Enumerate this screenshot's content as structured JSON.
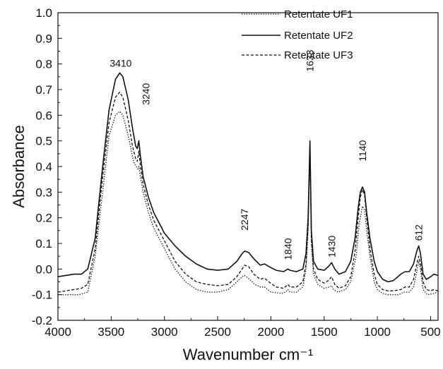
{
  "chart_data": {
    "type": "line",
    "title": "",
    "xlabel": "Wavenumber cm⁻¹",
    "ylabel": "Absorbance",
    "xlim": [
      4000,
      430
    ],
    "ylim": [
      -0.2,
      1.0
    ],
    "x_reversed": true,
    "grid": false,
    "legend_position": "top-right",
    "x_ticks": [
      4000,
      3500,
      3000,
      2500,
      2000,
      1500,
      1000,
      500
    ],
    "x_tick_labels": [
      "4000",
      "3500",
      "3000",
      "2500",
      "2000",
      "1500",
      "1000",
      "500"
    ],
    "y_ticks": [
      -0.2,
      -0.1,
      0.0,
      0.1,
      0.2,
      0.3,
      0.4,
      0.5,
      0.6,
      0.7,
      0.8,
      0.9,
      1.0
    ],
    "y_tick_labels": [
      "-0.2",
      "-0.1",
      "0.0",
      "0.1",
      "0.2",
      "0.3",
      "0.4",
      "0.5",
      "0.6",
      "0.7",
      "0.8",
      "0.9",
      "1.0"
    ],
    "series": [
      {
        "name": "Retentate UF1",
        "style": "dotted",
        "color": "#111111",
        "points": [
          [
            4000,
            -0.1
          ],
          [
            3800,
            -0.1
          ],
          [
            3720,
            -0.09
          ],
          [
            3650,
            0.05
          ],
          [
            3580,
            0.3
          ],
          [
            3520,
            0.52
          ],
          [
            3460,
            0.6
          ],
          [
            3420,
            0.615
          ],
          [
            3390,
            0.6
          ],
          [
            3340,
            0.52
          ],
          [
            3290,
            0.42
          ],
          [
            3250,
            0.39
          ],
          [
            3240,
            0.4
          ],
          [
            3225,
            0.36
          ],
          [
            3200,
            0.3
          ],
          [
            3150,
            0.22
          ],
          [
            3100,
            0.16
          ],
          [
            3000,
            0.08
          ],
          [
            2900,
            0.0
          ],
          [
            2800,
            -0.05
          ],
          [
            2700,
            -0.08
          ],
          [
            2600,
            -0.09
          ],
          [
            2500,
            -0.09
          ],
          [
            2400,
            -0.08
          ],
          [
            2320,
            -0.05
          ],
          [
            2270,
            -0.03
          ],
          [
            2247,
            -0.025
          ],
          [
            2200,
            -0.04
          ],
          [
            2150,
            -0.06
          ],
          [
            2100,
            -0.07
          ],
          [
            2060,
            -0.07
          ],
          [
            2000,
            -0.09
          ],
          [
            1900,
            -0.095
          ],
          [
            1860,
            -0.09
          ],
          [
            1840,
            -0.08
          ],
          [
            1820,
            -0.09
          ],
          [
            1760,
            -0.09
          ],
          [
            1700,
            -0.07
          ],
          [
            1670,
            0.0
          ],
          [
            1650,
            0.15
          ],
          [
            1633,
            0.45
          ],
          [
            1620,
            0.1
          ],
          [
            1600,
            -0.02
          ],
          [
            1560,
            -0.06
          ],
          [
            1500,
            -0.075
          ],
          [
            1450,
            -0.07
          ],
          [
            1430,
            -0.065
          ],
          [
            1410,
            -0.08
          ],
          [
            1370,
            -0.09
          ],
          [
            1300,
            -0.08
          ],
          [
            1250,
            -0.05
          ],
          [
            1200,
            0.05
          ],
          [
            1170,
            0.18
          ],
          [
            1140,
            0.245
          ],
          [
            1120,
            0.23
          ],
          [
            1100,
            0.15
          ],
          [
            1070,
            0.05
          ],
          [
            1030,
            -0.05
          ],
          [
            1000,
            -0.08
          ],
          [
            950,
            -0.095
          ],
          [
            900,
            -0.1
          ],
          [
            800,
            -0.1
          ],
          [
            750,
            -0.09
          ],
          [
            700,
            -0.09
          ],
          [
            660,
            -0.07
          ],
          [
            630,
            -0.01
          ],
          [
            612,
            0.03
          ],
          [
            595,
            0.0
          ],
          [
            570,
            -0.08
          ],
          [
            530,
            -0.1
          ],
          [
            470,
            -0.095
          ],
          [
            430,
            -0.09
          ]
        ]
      },
      {
        "name": "Retentate UF2",
        "style": "solid",
        "color": "#111111",
        "points": [
          [
            4000,
            -0.03
          ],
          [
            3850,
            -0.02
          ],
          [
            3780,
            -0.02
          ],
          [
            3720,
            0.0
          ],
          [
            3650,
            0.12
          ],
          [
            3580,
            0.4
          ],
          [
            3520,
            0.62
          ],
          [
            3460,
            0.74
          ],
          [
            3420,
            0.765
          ],
          [
            3390,
            0.75
          ],
          [
            3340,
            0.66
          ],
          [
            3300,
            0.55
          ],
          [
            3270,
            0.48
          ],
          [
            3255,
            0.47
          ],
          [
            3240,
            0.5
          ],
          [
            3225,
            0.44
          ],
          [
            3200,
            0.36
          ],
          [
            3150,
            0.28
          ],
          [
            3100,
            0.22
          ],
          [
            3000,
            0.14
          ],
          [
            2900,
            0.09
          ],
          [
            2800,
            0.05
          ],
          [
            2700,
            0.02
          ],
          [
            2600,
            0.0
          ],
          [
            2500,
            -0.005
          ],
          [
            2400,
            0.0
          ],
          [
            2320,
            0.03
          ],
          [
            2270,
            0.06
          ],
          [
            2247,
            0.07
          ],
          [
            2210,
            0.065
          ],
          [
            2160,
            0.04
          ],
          [
            2100,
            0.015
          ],
          [
            2060,
            0.02
          ],
          [
            2020,
            0.01
          ],
          [
            1950,
            -0.005
          ],
          [
            1880,
            -0.01
          ],
          [
            1840,
            0.0
          ],
          [
            1820,
            -0.005
          ],
          [
            1760,
            -0.01
          ],
          [
            1700,
            0.0
          ],
          [
            1670,
            0.06
          ],
          [
            1650,
            0.2
          ],
          [
            1633,
            0.5
          ],
          [
            1620,
            0.15
          ],
          [
            1600,
            0.03
          ],
          [
            1560,
            0.0
          ],
          [
            1500,
            -0.005
          ],
          [
            1460,
            0.01
          ],
          [
            1430,
            0.025
          ],
          [
            1400,
            0.0
          ],
          [
            1360,
            -0.02
          ],
          [
            1300,
            -0.01
          ],
          [
            1250,
            0.03
          ],
          [
            1210,
            0.12
          ],
          [
            1180,
            0.24
          ],
          [
            1160,
            0.3
          ],
          [
            1140,
            0.32
          ],
          [
            1120,
            0.3
          ],
          [
            1100,
            0.22
          ],
          [
            1070,
            0.12
          ],
          [
            1030,
            0.03
          ],
          [
            1000,
            -0.01
          ],
          [
            950,
            -0.04
          ],
          [
            900,
            -0.05
          ],
          [
            850,
            -0.045
          ],
          [
            780,
            -0.02
          ],
          [
            740,
            -0.01
          ],
          [
            700,
            -0.01
          ],
          [
            660,
            0.02
          ],
          [
            630,
            0.07
          ],
          [
            612,
            0.09
          ],
          [
            595,
            0.06
          ],
          [
            570,
            -0.02
          ],
          [
            540,
            -0.04
          ],
          [
            500,
            -0.03
          ],
          [
            470,
            -0.02
          ],
          [
            430,
            -0.025
          ]
        ]
      },
      {
        "name": "Retentate UF3",
        "style": "dashed",
        "color": "#111111",
        "points": [
          [
            4000,
            -0.09
          ],
          [
            3850,
            -0.08
          ],
          [
            3780,
            -0.075
          ],
          [
            3720,
            -0.06
          ],
          [
            3650,
            0.08
          ],
          [
            3580,
            0.36
          ],
          [
            3520,
            0.57
          ],
          [
            3460,
            0.67
          ],
          [
            3420,
            0.69
          ],
          [
            3390,
            0.67
          ],
          [
            3340,
            0.58
          ],
          [
            3300,
            0.48
          ],
          [
            3270,
            0.43
          ],
          [
            3255,
            0.42
          ],
          [
            3240,
            0.46
          ],
          [
            3225,
            0.4
          ],
          [
            3200,
            0.33
          ],
          [
            3150,
            0.25
          ],
          [
            3100,
            0.19
          ],
          [
            3000,
            0.11
          ],
          [
            2900,
            0.03
          ],
          [
            2800,
            -0.02
          ],
          [
            2700,
            -0.05
          ],
          [
            2600,
            -0.06
          ],
          [
            2500,
            -0.065
          ],
          [
            2400,
            -0.06
          ],
          [
            2320,
            -0.03
          ],
          [
            2270,
            0.0
          ],
          [
            2247,
            0.015
          ],
          [
            2210,
            0.01
          ],
          [
            2160,
            -0.02
          ],
          [
            2100,
            -0.04
          ],
          [
            2060,
            -0.035
          ],
          [
            2020,
            -0.05
          ],
          [
            1950,
            -0.07
          ],
          [
            1880,
            -0.075
          ],
          [
            1840,
            -0.06
          ],
          [
            1820,
            -0.07
          ],
          [
            1760,
            -0.07
          ],
          [
            1700,
            -0.05
          ],
          [
            1670,
            0.02
          ],
          [
            1650,
            0.17
          ],
          [
            1633,
            0.48
          ],
          [
            1620,
            0.12
          ],
          [
            1600,
            0.0
          ],
          [
            1560,
            -0.04
          ],
          [
            1500,
            -0.055
          ],
          [
            1460,
            -0.045
          ],
          [
            1430,
            -0.03
          ],
          [
            1400,
            -0.06
          ],
          [
            1360,
            -0.075
          ],
          [
            1300,
            -0.065
          ],
          [
            1250,
            -0.03
          ],
          [
            1210,
            0.07
          ],
          [
            1180,
            0.2
          ],
          [
            1160,
            0.28
          ],
          [
            1140,
            0.31
          ],
          [
            1120,
            0.29
          ],
          [
            1100,
            0.2
          ],
          [
            1070,
            0.08
          ],
          [
            1030,
            -0.02
          ],
          [
            1000,
            -0.06
          ],
          [
            950,
            -0.08
          ],
          [
            900,
            -0.085
          ],
          [
            850,
            -0.085
          ],
          [
            780,
            -0.08
          ],
          [
            740,
            -0.07
          ],
          [
            700,
            -0.07
          ],
          [
            660,
            -0.04
          ],
          [
            630,
            0.02
          ],
          [
            612,
            0.05
          ],
          [
            595,
            0.02
          ],
          [
            570,
            -0.05
          ],
          [
            540,
            -0.08
          ],
          [
            500,
            -0.085
          ],
          [
            470,
            -0.08
          ],
          [
            430,
            -0.085
          ]
        ]
      }
    ],
    "annotations": [
      {
        "text": "3410",
        "x": 3410,
        "y": 0.79,
        "rotate": false
      },
      {
        "text": "3240",
        "x": 3175,
        "y": 0.64,
        "rotate": true
      },
      {
        "text": "2247",
        "x": 2247,
        "y": 0.15,
        "rotate": true
      },
      {
        "text": "1840",
        "x": 1840,
        "y": 0.035,
        "rotate": true
      },
      {
        "text": "1633",
        "x": 1633,
        "y": 0.77,
        "rotate": true
      },
      {
        "text": "1430",
        "x": 1430,
        "y": 0.045,
        "rotate": true
      },
      {
        "text": "1140",
        "x": 1140,
        "y": 0.42,
        "rotate": true
      },
      {
        "text": "612",
        "x": 612,
        "y": 0.11,
        "rotate": true
      }
    ]
  }
}
